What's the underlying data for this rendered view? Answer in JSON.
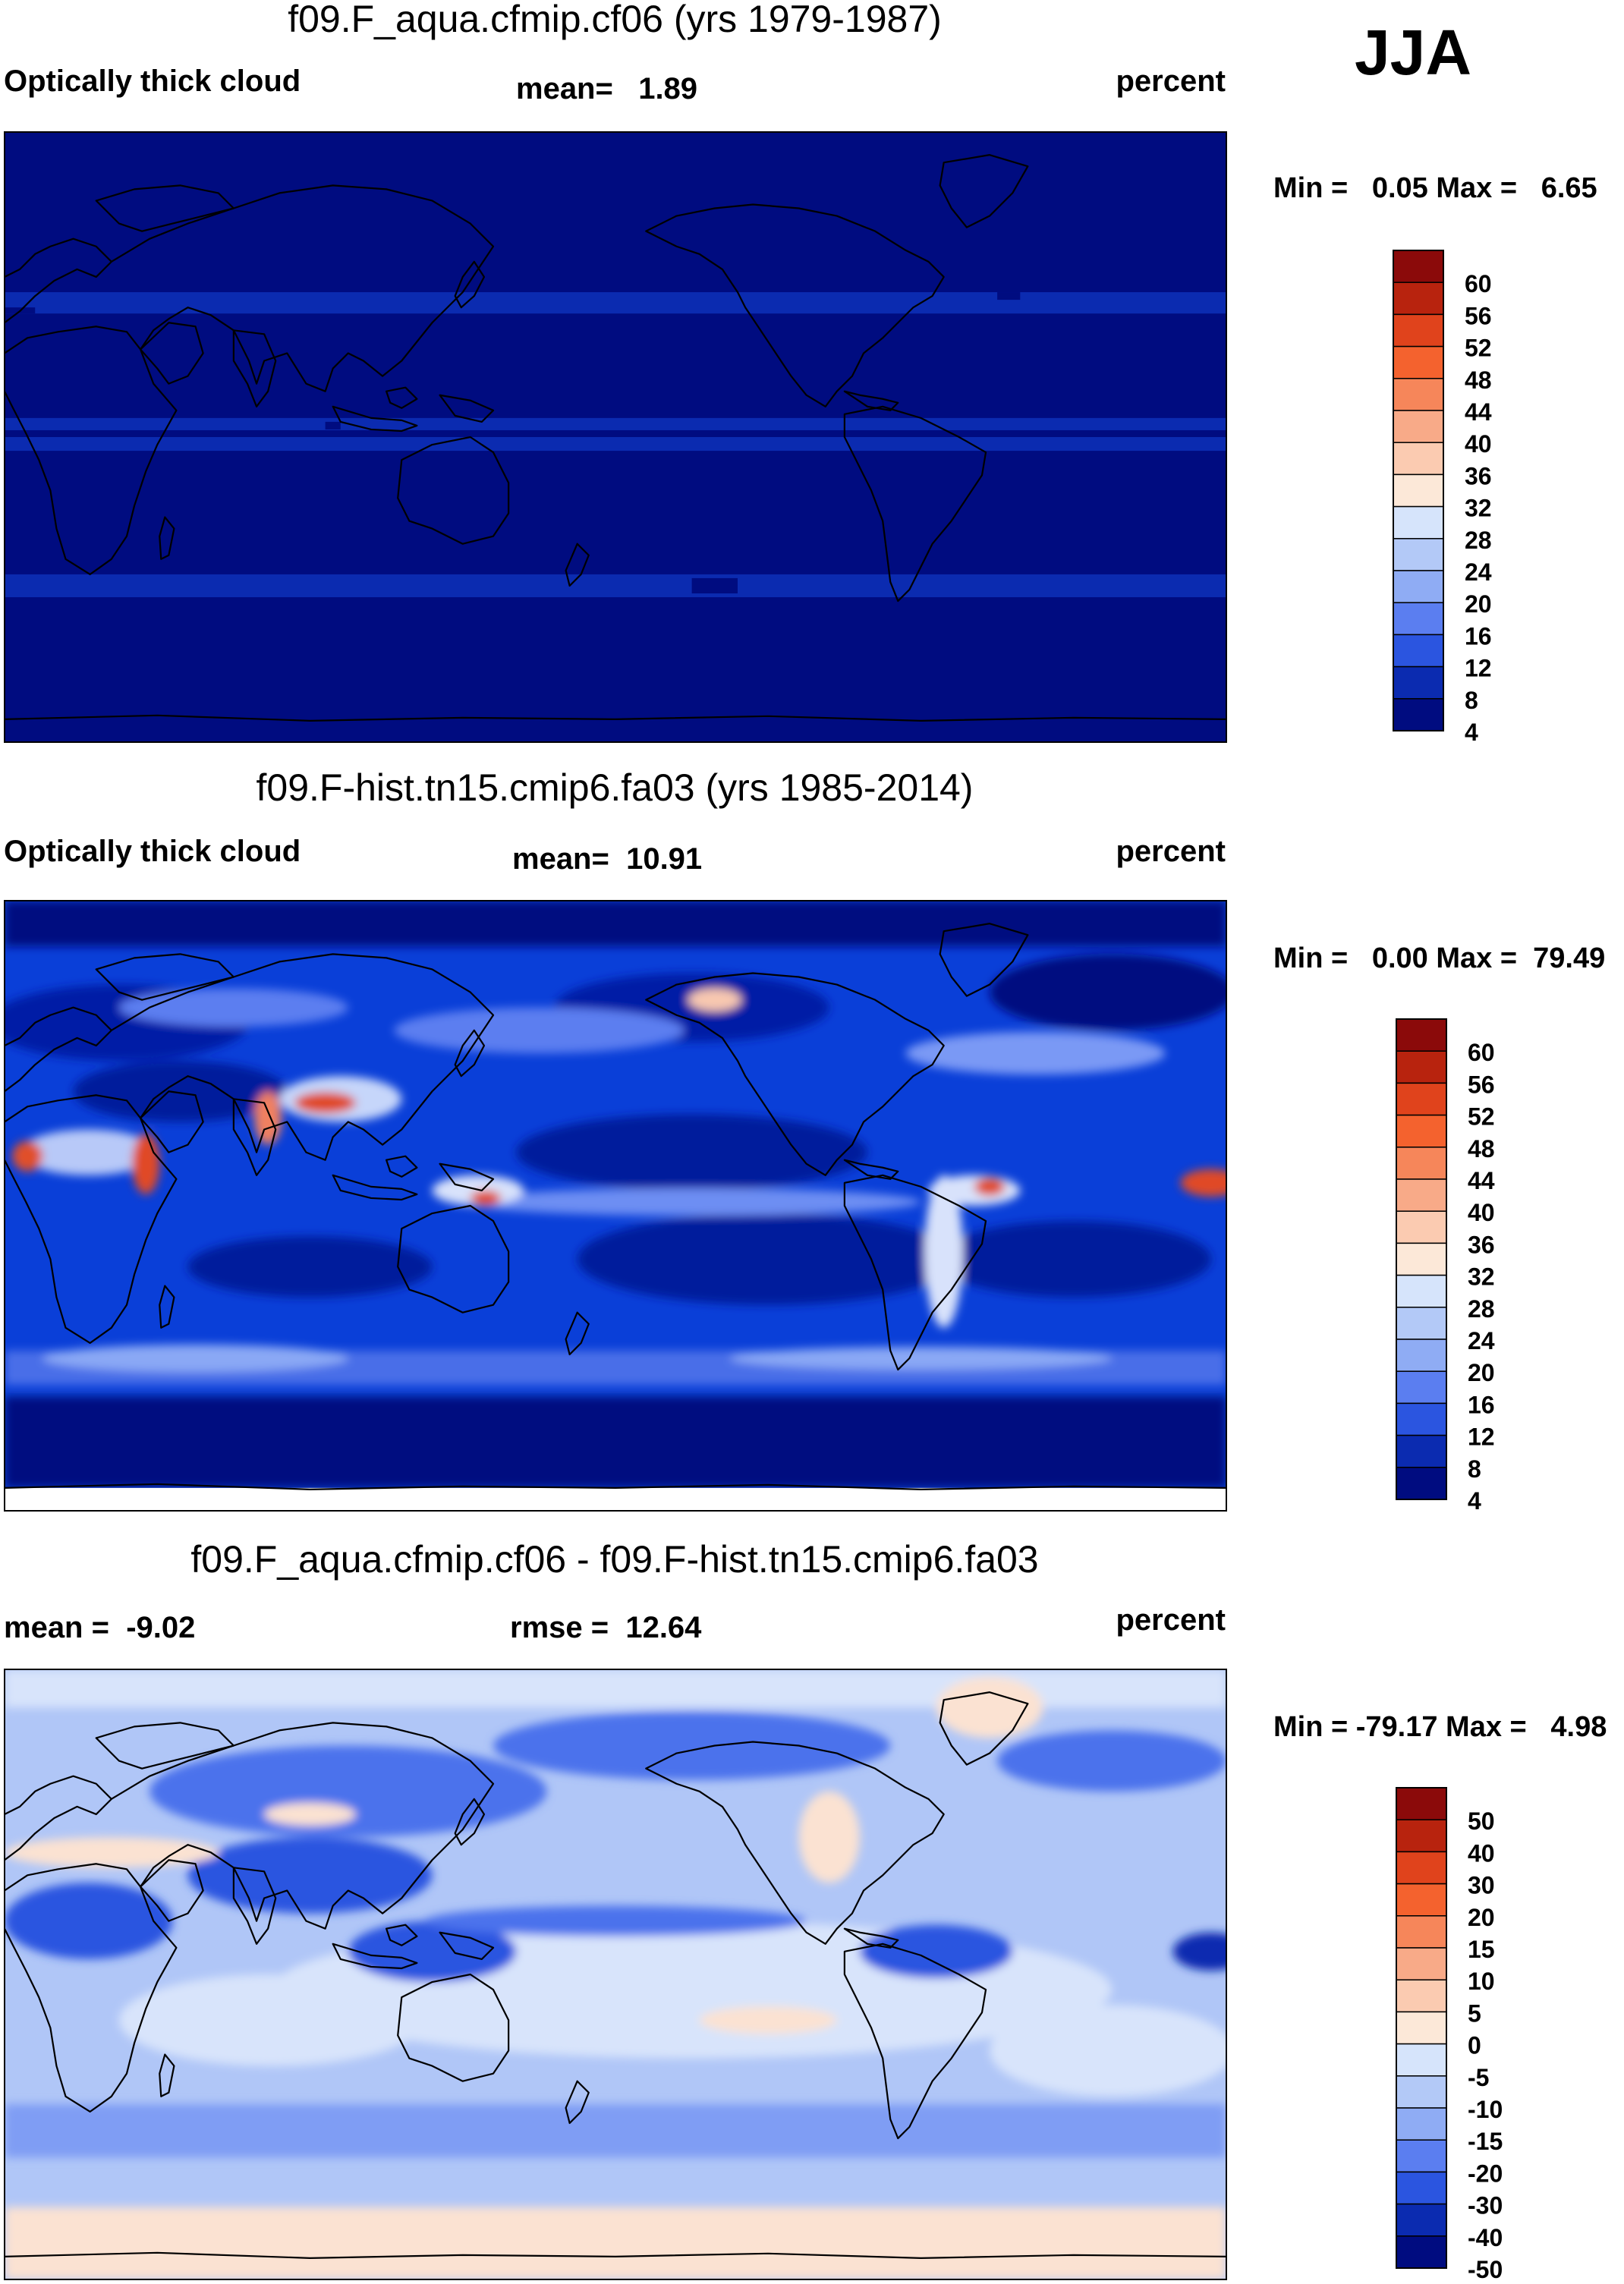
{
  "season": "JJA",
  "colors": {
    "ocean_deep": "#000c80",
    "frame": "#000000",
    "coast": "#000000"
  },
  "panels": [
    {
      "title": "f09.F_aqua.cfmip.cf06 (yrs 1979-1987)",
      "left_label": "Optically thick cloud",
      "center_label": "mean=   1.89",
      "right_label": "percent",
      "minmax": "Min =   0.05 Max =   6.65",
      "field": "aqua",
      "colorbar": [
        "60",
        "56",
        "52",
        "48",
        "44",
        "40",
        "36",
        "32",
        "28",
        "24",
        "20",
        "16",
        "12",
        "8",
        "4"
      ]
    },
    {
      "title": "f09.F-hist.tn15.cmip6.fa03 (yrs 1985-2014)",
      "left_label": "Optically thick cloud",
      "center_label": "mean=  10.91",
      "right_label": "percent",
      "minmax": "Min =   0.00 Max =  79.49",
      "field": "hist",
      "colorbar": [
        "60",
        "56",
        "52",
        "48",
        "44",
        "40",
        "36",
        "32",
        "28",
        "24",
        "20",
        "16",
        "12",
        "8",
        "4"
      ]
    },
    {
      "title": "f09.F_aqua.cfmip.cf06 - f09.F-hist.tn15.cmip6.fa03",
      "left_label": "mean =  -9.02",
      "center_label": "rmse =  12.64",
      "right_label": "percent",
      "minmax": "Min = -79.17 Max =   4.98",
      "field": "diff",
      "colorbar": [
        "50",
        "40",
        "30",
        "20",
        "15",
        "10",
        "5",
        "0",
        "-5",
        "-10",
        "-15",
        "-20",
        "-30",
        "-40",
        "-50"
      ]
    }
  ],
  "chart_data": [
    {
      "type": "heatmap",
      "title": "f09.F_aqua.cfmip.cf06 (yrs 1979-1987)",
      "variable": "Optically thick cloud",
      "units": "percent",
      "season": "JJA",
      "mean": 1.89,
      "min": 0.05,
      "max": 6.65,
      "contour_levels": [
        4,
        8,
        12,
        16,
        20,
        24,
        28,
        32,
        36,
        40,
        44,
        48,
        52,
        56,
        60
      ],
      "bands": [
        {
          "lat_range": [
            30,
            40
          ],
          "value_range": [
            4,
            8
          ]
        },
        {
          "lat_range": [
            -5,
            5
          ],
          "value_range": [
            4,
            8
          ]
        },
        {
          "lat_range": [
            -40,
            -30
          ],
          "value_range": [
            4,
            8
          ]
        }
      ]
    },
    {
      "type": "heatmap",
      "title": "f09.F-hist.tn15.cmip6.fa03 (yrs 1985-2014)",
      "variable": "Optically thick cloud",
      "units": "percent",
      "season": "JJA",
      "mean": 10.91,
      "min": 0.0,
      "max": 79.49,
      "contour_levels": [
        4,
        8,
        12,
        16,
        20,
        24,
        28,
        32,
        36,
        40,
        44,
        48,
        52,
        56,
        60
      ]
    },
    {
      "type": "heatmap",
      "title": "f09.F_aqua.cfmip.cf06 - f09.F-hist.tn15.cmip6.fa03",
      "units": "percent",
      "season": "JJA",
      "mean": -9.02,
      "rmse": 12.64,
      "min": -79.17,
      "max": 4.98,
      "contour_levels": [
        -50,
        -40,
        -30,
        -20,
        -15,
        -10,
        -5,
        0,
        5,
        10,
        15,
        20,
        30,
        40,
        50
      ]
    }
  ]
}
